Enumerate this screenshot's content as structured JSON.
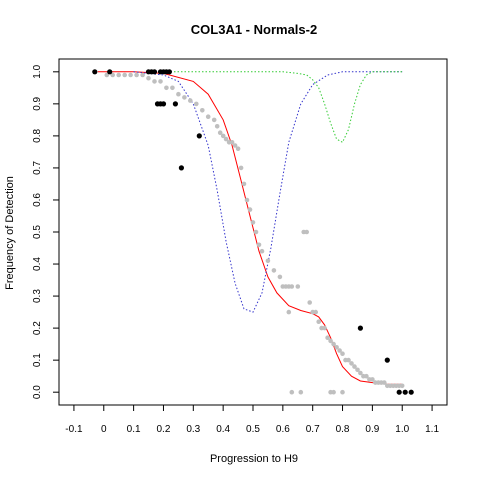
{
  "chart_data": {
    "type": "scatter",
    "title": "COL3A1 - Normals-2",
    "xlabel": "Progression to H9",
    "ylabel": "Frequency of Detection",
    "xlim": [
      -0.15,
      1.15
    ],
    "ylim": [
      -0.04,
      1.04
    ],
    "x_ticks": [
      "-0.1",
      "0",
      "0.1",
      "0.2",
      "0.3",
      "0.4",
      "0.5",
      "0.6",
      "0.7",
      "0.8",
      "0.9",
      "1.0",
      "1.1"
    ],
    "y_ticks": [
      "0.0",
      "0.1",
      "0.2",
      "0.3",
      "0.4",
      "0.5",
      "0.6",
      "0.7",
      "0.8",
      "0.9",
      "1.0"
    ],
    "grid": false,
    "series": [
      {
        "kind": "points",
        "color": "#000000",
        "x": [
          -0.03,
          0.02,
          0.15,
          0.16,
          0.17,
          0.19,
          0.2,
          0.21,
          0.22,
          0.18,
          0.19,
          0.2,
          0.24,
          0.32,
          0.26,
          0.86,
          0.95,
          0.99,
          1.01,
          1.03
        ],
        "y": [
          1.0,
          1.0,
          1.0,
          1.0,
          1.0,
          1.0,
          1.0,
          1.0,
          1.0,
          0.9,
          0.9,
          0.9,
          0.9,
          0.8,
          0.7,
          0.2,
          0.1,
          0.0,
          0.0,
          0.0
        ]
      },
      {
        "kind": "points",
        "color": "#bfbfbf",
        "x": [
          0.01,
          0.03,
          0.05,
          0.07,
          0.09,
          0.11,
          0.13,
          0.15,
          0.17,
          0.19,
          0.21,
          0.23,
          0.25,
          0.27,
          0.29,
          0.31,
          0.33,
          0.35,
          0.37,
          0.38,
          0.39,
          0.4,
          0.41,
          0.42,
          0.43,
          0.44,
          0.45,
          0.46,
          0.47,
          0.48,
          0.49,
          0.5,
          0.51,
          0.52,
          0.53,
          0.55,
          0.57,
          0.59,
          0.6,
          0.61,
          0.62,
          0.63,
          0.65,
          0.67,
          0.68,
          0.69,
          0.7,
          0.71,
          0.72,
          0.73,
          0.74,
          0.75,
          0.76,
          0.77,
          0.78,
          0.79,
          0.8,
          0.81,
          0.82,
          0.83,
          0.84,
          0.85,
          0.86,
          0.87,
          0.88,
          0.89,
          0.9,
          0.91,
          0.92,
          0.93,
          0.94,
          0.95,
          0.96,
          0.97,
          0.98,
          0.99,
          1.0,
          0.62,
          0.63,
          0.66,
          0.76,
          0.77,
          0.8
        ],
        "y": [
          0.99,
          0.99,
          0.99,
          0.99,
          0.99,
          0.99,
          0.99,
          0.98,
          0.97,
          0.97,
          0.95,
          0.95,
          0.93,
          0.92,
          0.91,
          0.9,
          0.88,
          0.86,
          0.85,
          0.83,
          0.81,
          0.8,
          0.79,
          0.78,
          0.78,
          0.77,
          0.76,
          0.7,
          0.65,
          0.6,
          0.57,
          0.53,
          0.5,
          0.46,
          0.44,
          0.41,
          0.38,
          0.36,
          0.33,
          0.33,
          0.33,
          0.33,
          0.33,
          0.5,
          0.5,
          0.28,
          0.25,
          0.25,
          0.22,
          0.2,
          0.2,
          0.17,
          0.16,
          0.15,
          0.14,
          0.13,
          0.12,
          0.1,
          0.1,
          0.09,
          0.08,
          0.07,
          0.06,
          0.05,
          0.05,
          0.04,
          0.04,
          0.03,
          0.03,
          0.03,
          0.03,
          0.02,
          0.02,
          0.02,
          0.02,
          0.02,
          0.02,
          0.25,
          0.0,
          0.0,
          0.0,
          0.0,
          0.0
        ]
      },
      {
        "kind": "curve",
        "color": "#ff0000",
        "dash": false,
        "x": [
          -0.02,
          0.1,
          0.2,
          0.3,
          0.35,
          0.4,
          0.43,
          0.46,
          0.49,
          0.52,
          0.55,
          0.58,
          0.62,
          0.66,
          0.7,
          0.72,
          0.74,
          0.76,
          0.78,
          0.8,
          0.83,
          0.86,
          0.9,
          0.95,
          1.0
        ],
        "y": [
          1.0,
          1.0,
          0.995,
          0.97,
          0.93,
          0.85,
          0.77,
          0.66,
          0.55,
          0.44,
          0.36,
          0.31,
          0.27,
          0.255,
          0.245,
          0.235,
          0.21,
          0.17,
          0.12,
          0.08,
          0.05,
          0.035,
          0.03,
          0.025,
          0.025
        ]
      },
      {
        "kind": "curve",
        "color": "#3333cc",
        "dash": true,
        "x": [
          0.1,
          0.2,
          0.25,
          0.3,
          0.35,
          0.38,
          0.41,
          0.44,
          0.47,
          0.5,
          0.53,
          0.56,
          0.59,
          0.62,
          0.66,
          0.7,
          0.75,
          0.8,
          0.9,
          1.0
        ],
        "y": [
          1.0,
          0.99,
          0.97,
          0.9,
          0.77,
          0.63,
          0.47,
          0.34,
          0.26,
          0.25,
          0.31,
          0.45,
          0.62,
          0.78,
          0.9,
          0.96,
          0.99,
          1.0,
          1.0,
          1.0
        ]
      },
      {
        "kind": "curve",
        "color": "#33cc33",
        "dash": true,
        "x": [
          0.2,
          0.5,
          0.6,
          0.65,
          0.68,
          0.7,
          0.72,
          0.74,
          0.76,
          0.78,
          0.8,
          0.82,
          0.84,
          0.86,
          0.88,
          0.9,
          0.95,
          1.0
        ],
        "y": [
          1.0,
          1.0,
          1.0,
          0.995,
          0.99,
          0.975,
          0.95,
          0.9,
          0.84,
          0.79,
          0.78,
          0.82,
          0.9,
          0.96,
          0.99,
          1.0,
          1.0,
          1.0
        ]
      }
    ]
  }
}
